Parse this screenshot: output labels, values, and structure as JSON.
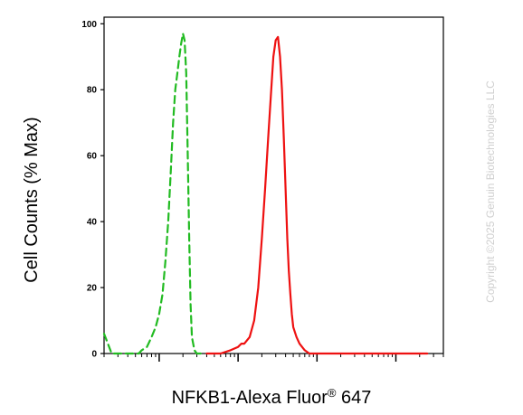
{
  "chart_data": {
    "type": "line",
    "title": "",
    "xlabel_main": "NFKB1-Alexa Fluor",
    "xlabel_sup": "®",
    "xlabel_tail": " 647",
    "ylabel": "Cell Counts (% Max)",
    "x_scale": "log",
    "xlim": [
      20,
      400000
    ],
    "ylim": [
      0,
      102
    ],
    "y_ticks": [
      0,
      20,
      40,
      60,
      80,
      100
    ],
    "y_tick_labels": [
      "0",
      "20",
      "40",
      "60",
      "80",
      "100"
    ],
    "x_major_ticks": [
      100,
      1000,
      10000,
      100000
    ],
    "grid": false,
    "legend": "none",
    "series": [
      {
        "color": "#22bb22",
        "dash": "dashed",
        "x": [
          20,
          25,
          30,
          40,
          50,
          55,
          60,
          70,
          80,
          90,
          100,
          110,
          120,
          130,
          140,
          150,
          160,
          170,
          180,
          190,
          200,
          210,
          220,
          230,
          240,
          250,
          260,
          280,
          300,
          350
        ],
        "y": [
          6,
          0,
          0,
          0,
          0,
          0,
          1,
          2,
          5,
          8,
          12,
          18,
          28,
          40,
          55,
          70,
          80,
          85,
          90,
          94,
          97,
          95,
          85,
          60,
          35,
          15,
          5,
          1,
          0,
          0
        ]
      },
      {
        "color": "#ee1111",
        "dash": "solid",
        "x": [
          400,
          600,
          800,
          1000,
          1100,
          1200,
          1400,
          1600,
          1800,
          2000,
          2200,
          2400,
          2600,
          2800,
          3000,
          3200,
          3400,
          3600,
          3800,
          4000,
          4200,
          4400,
          4600,
          4800,
          5000,
          5500,
          6000,
          7000,
          8000,
          9000,
          10000,
          12000,
          15000,
          20000,
          40000,
          100000,
          250000
        ],
        "y": [
          0,
          0,
          1,
          2,
          3,
          3,
          5,
          10,
          20,
          35,
          50,
          65,
          78,
          90,
          95,
          96,
          90,
          80,
          65,
          50,
          35,
          25,
          18,
          12,
          8,
          5,
          3,
          1,
          0,
          0,
          0,
          0,
          0,
          0,
          0,
          0,
          0
        ]
      }
    ]
  },
  "watermark": "Copyright ©2025 Genuin Biotechnologies LLC"
}
